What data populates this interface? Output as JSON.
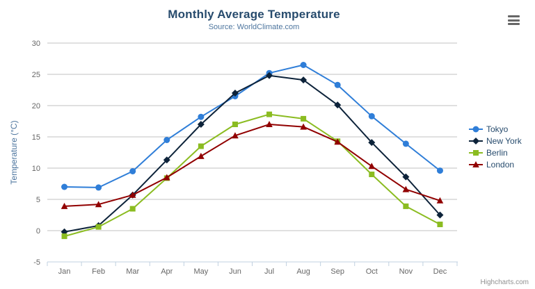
{
  "chart": {
    "credits": "Highcharts.com",
    "export_icon": "hamburger-menu-icon",
    "colors": {
      "title": "#274b6d",
      "subtitle": "#4d759e",
      "axis_labels": "#666666",
      "axis_title": "#4d759e",
      "gridline": "#c0c0c0",
      "axis_line": "#c0d0e0",
      "credits": "#909090"
    }
  },
  "chart_data": {
    "type": "line",
    "title": "Monthly Average Temperature",
    "subtitle": "Source: WorldClimate.com",
    "categories": [
      "Jan",
      "Feb",
      "Mar",
      "Apr",
      "May",
      "Jun",
      "Jul",
      "Aug",
      "Sep",
      "Oct",
      "Nov",
      "Dec"
    ],
    "series": [
      {
        "name": "Tokyo",
        "color": "#2f7ed8",
        "marker": "circle",
        "values": [
          7.0,
          6.9,
          9.5,
          14.5,
          18.2,
          21.5,
          25.2,
          26.5,
          23.3,
          18.3,
          13.9,
          9.6
        ]
      },
      {
        "name": "New York",
        "color": "#0d233a",
        "marker": "diamond",
        "values": [
          -0.2,
          0.8,
          5.7,
          11.3,
          17.0,
          22.0,
          24.8,
          24.1,
          20.1,
          14.1,
          8.6,
          2.5
        ]
      },
      {
        "name": "Berlin",
        "color": "#8bbc21",
        "marker": "square",
        "values": [
          -0.9,
          0.6,
          3.5,
          8.4,
          13.5,
          17.0,
          18.6,
          17.9,
          14.3,
          9.0,
          3.9,
          1.0
        ]
      },
      {
        "name": "London",
        "color": "#910000",
        "marker": "triangle",
        "values": [
          3.9,
          4.2,
          5.7,
          8.5,
          11.9,
          15.2,
          17.0,
          16.6,
          14.2,
          10.3,
          6.6,
          4.8
        ]
      }
    ],
    "xlabel": "",
    "ylabel": "Temperature (°C)",
    "ylim": [
      -5,
      30
    ],
    "ytick_interval": 5,
    "grid": true,
    "legend_position": "right"
  }
}
